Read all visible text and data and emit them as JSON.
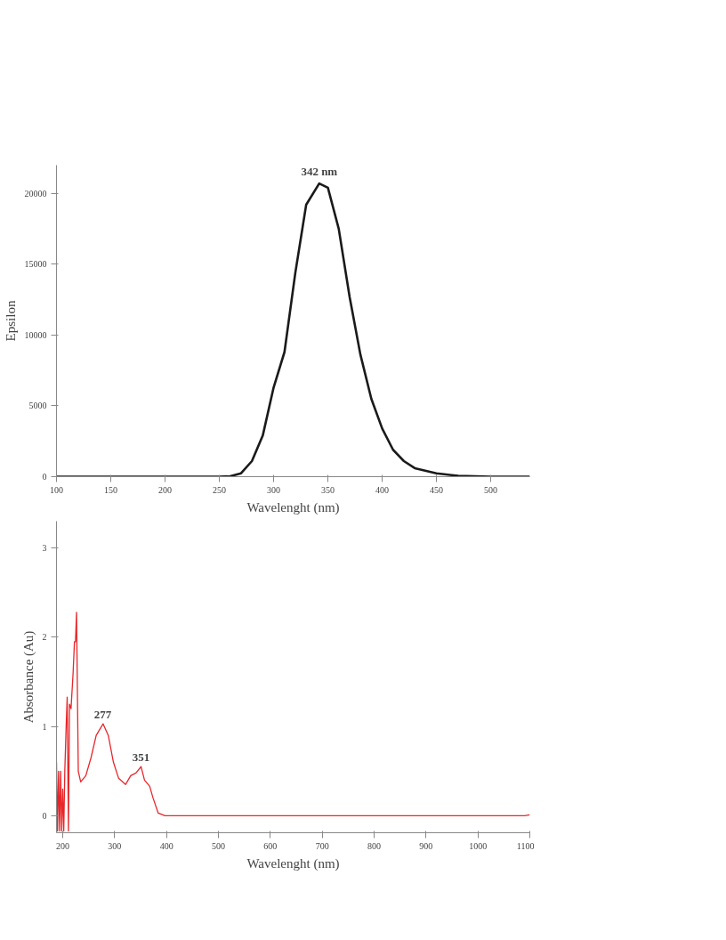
{
  "chart_data": [
    {
      "type": "line",
      "xlabel": "Wavelenght (nm)",
      "ylabel": "Epsilon",
      "grid": false,
      "marker": "none",
      "line_style": "solid",
      "xlim": [
        100,
        536
      ],
      "ylim": [
        0,
        22000
      ],
      "xticks": [
        100,
        150,
        200,
        250,
        300,
        350,
        400,
        450,
        500
      ],
      "yticks": [
        0,
        5000,
        10000,
        15000,
        20000
      ],
      "annotations": [
        {
          "text": "342 nm",
          "x": 342,
          "y": 20700
        }
      ],
      "series": [
        {
          "color": "#1a1a1a",
          "x": [
            100,
            150,
            200,
            250,
            260,
            270,
            280,
            290,
            300,
            310,
            320,
            330,
            342,
            350,
            360,
            370,
            380,
            390,
            400,
            410,
            420,
            430,
            450,
            470,
            500,
            536
          ],
          "values": [
            0,
            0,
            0,
            0,
            30,
            240,
            1100,
            2900,
            6300,
            8800,
            14400,
            19200,
            20700,
            20400,
            17500,
            12700,
            8600,
            5500,
            3400,
            1900,
            1100,
            600,
            240,
            60,
            0,
            0
          ]
        }
      ]
    },
    {
      "type": "line",
      "xlabel": "Wavelenght (nm)",
      "ylabel": "Absorbance (Au)",
      "grid": false,
      "marker": "none",
      "line_style": "solid",
      "xlim": [
        188,
        1100
      ],
      "ylim": [
        -0.19,
        3.3
      ],
      "xticks": [
        200,
        300,
        400,
        500,
        600,
        700,
        800,
        900,
        1000,
        1100
      ],
      "yticks": [
        0,
        1,
        2,
        3
      ],
      "annotations": [
        {
          "text": "277",
          "x": 277,
          "y": 1.03
        },
        {
          "text": "351",
          "x": 351,
          "y": 0.55
        }
      ],
      "series": [
        {
          "color": "#e8262a",
          "x": [
            188,
            190,
            192,
            194,
            196,
            198,
            200,
            202,
            204,
            206.6,
            208.6,
            211,
            213,
            216,
            220,
            222.6,
            224.6,
            226.6,
            230,
            234.6,
            244.5,
            254.5,
            264.5,
            277.8,
            287.8,
            297.7,
            307.7,
            321,
            331,
            341,
            351,
            357.6,
            367.6,
            374,
            384,
            397,
            450,
            500,
            600,
            700,
            800,
            900,
            1000,
            1090,
            1100
          ],
          "values": [
            0.6,
            -0.17,
            0.5,
            -0.17,
            0.5,
            -0.17,
            0.3,
            -0.17,
            0.5,
            1.0,
            1.33,
            -0.17,
            1.25,
            1.2,
            1.6,
            1.95,
            1.95,
            2.28,
            0.5,
            0.38,
            0.45,
            0.65,
            0.9,
            1.03,
            0.9,
            0.6,
            0.42,
            0.35,
            0.45,
            0.48,
            0.55,
            0.4,
            0.33,
            0.2,
            0.03,
            0.0,
            0.0,
            0.0,
            0.0,
            0.0,
            0.0,
            0.0,
            0.0,
            0.0,
            0.01
          ]
        }
      ]
    }
  ]
}
